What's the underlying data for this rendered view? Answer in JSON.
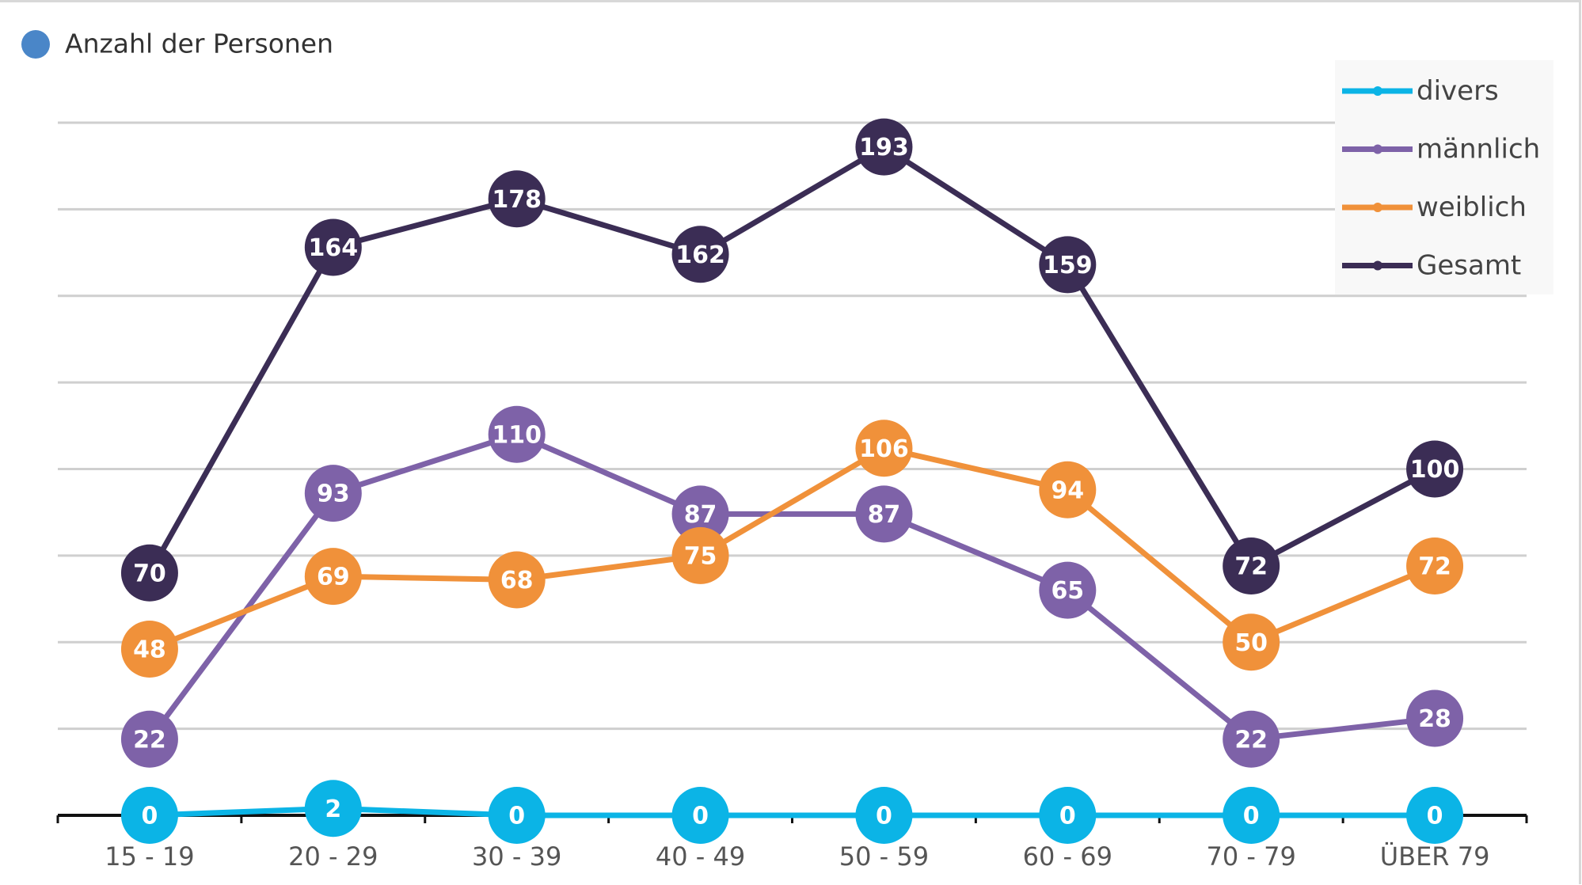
{
  "chart_data": {
    "type": "line",
    "title": "Anzahl der Personen",
    "title_marker_color": "#4a86c8",
    "categories": [
      "15 - 19",
      "20 - 29",
      "30 - 39",
      "40 - 49",
      "50 - 59",
      "60 - 69",
      "70 - 79",
      "ÜBER 79"
    ],
    "ylim": [
      0,
      200
    ],
    "grid": true,
    "legend_position": "top-right",
    "series": [
      {
        "name": "Gesamt",
        "color": "#3b2d55",
        "values": [
          70,
          164,
          178,
          162,
          193,
          159,
          72,
          100
        ]
      },
      {
        "name": "männlich",
        "color": "#7e62a8",
        "values": [
          22,
          93,
          110,
          87,
          87,
          65,
          22,
          28
        ]
      },
      {
        "name": "weiblich",
        "color": "#f0913a",
        "values": [
          48,
          69,
          68,
          75,
          106,
          94,
          50,
          72
        ]
      },
      {
        "name": "divers",
        "color": "#0bb4e6",
        "values": [
          0,
          2,
          0,
          0,
          0,
          0,
          0,
          0
        ]
      }
    ],
    "legend_order": [
      "divers",
      "männlich",
      "weiblich",
      "Gesamt"
    ]
  }
}
